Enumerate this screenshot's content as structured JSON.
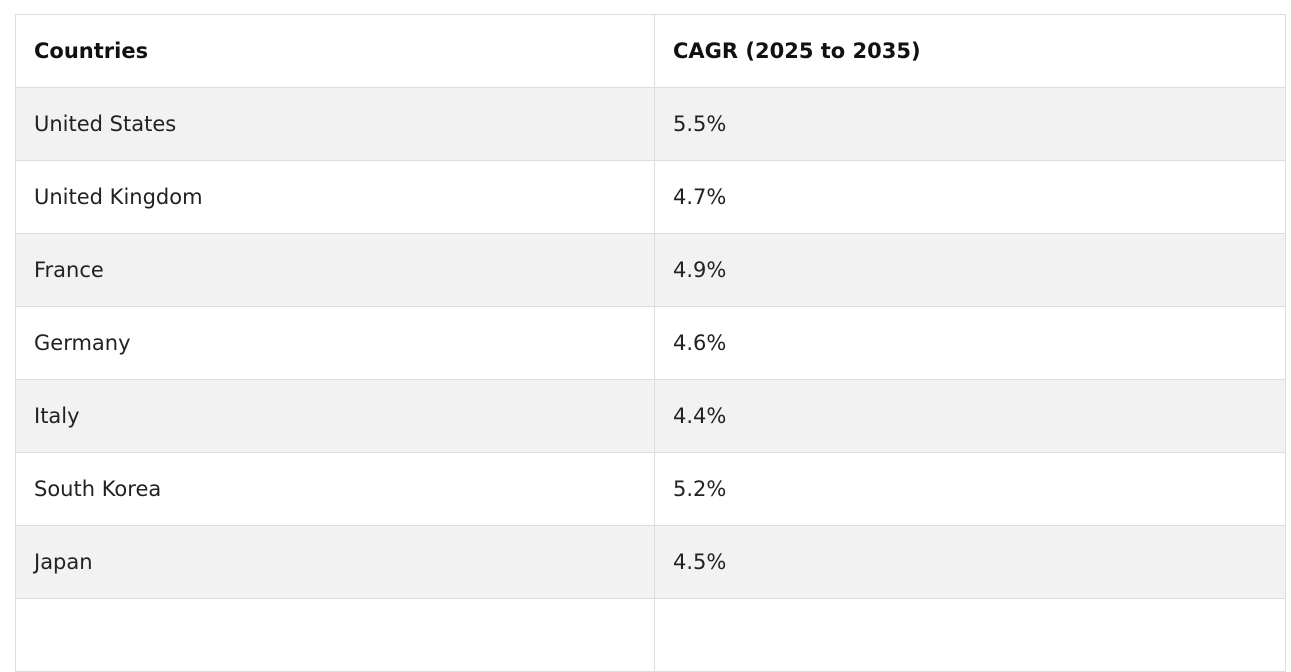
{
  "table": {
    "headers": [
      "Countries",
      "CAGR (2025 to 2035)"
    ],
    "rows": [
      [
        "United States",
        "5.5%"
      ],
      [
        "United Kingdom",
        "4.7%"
      ],
      [
        "France",
        "4.9%"
      ],
      [
        "Germany",
        "4.6%"
      ],
      [
        "Italy",
        "4.4%"
      ],
      [
        "South Korea",
        "5.2%"
      ],
      [
        "Japan",
        "4.5%"
      ],
      [
        "",
        ""
      ]
    ]
  }
}
